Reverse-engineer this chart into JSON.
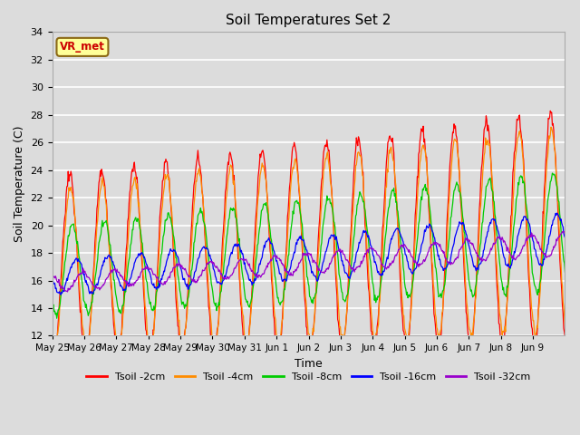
{
  "title": "Soil Temperatures Set 2",
  "xlabel": "Time",
  "ylabel": "Soil Temperature (C)",
  "ylim": [
    12,
    34
  ],
  "yticks": [
    12,
    14,
    16,
    18,
    20,
    22,
    24,
    26,
    28,
    30,
    32,
    34
  ],
  "plot_bg_color": "#dcdcdc",
  "annotation_text": "VR_met",
  "annotation_bg": "#ffff99",
  "annotation_border": "#8b6914",
  "lines": [
    {
      "label": "Tsoil -2cm",
      "color": "#ff0000"
    },
    {
      "label": "Tsoil -4cm",
      "color": "#ff8c00"
    },
    {
      "label": "Tsoil -8cm",
      "color": "#00cc00"
    },
    {
      "label": "Tsoil -16cm",
      "color": "#0000ff"
    },
    {
      "label": "Tsoil -32cm",
      "color": "#9900cc"
    }
  ],
  "x_tick_labels": [
    "May 25",
    "May 26",
    "May 27",
    "May 28",
    "May 29",
    "May 30",
    "May 31",
    "Jun 1",
    "Jun 2",
    "Jun 3",
    "Jun 4",
    "Jun 5",
    "Jun 6",
    "Jun 7",
    "Jun 8",
    "Jun 9"
  ],
  "num_days": 16,
  "points_per_day": 48
}
